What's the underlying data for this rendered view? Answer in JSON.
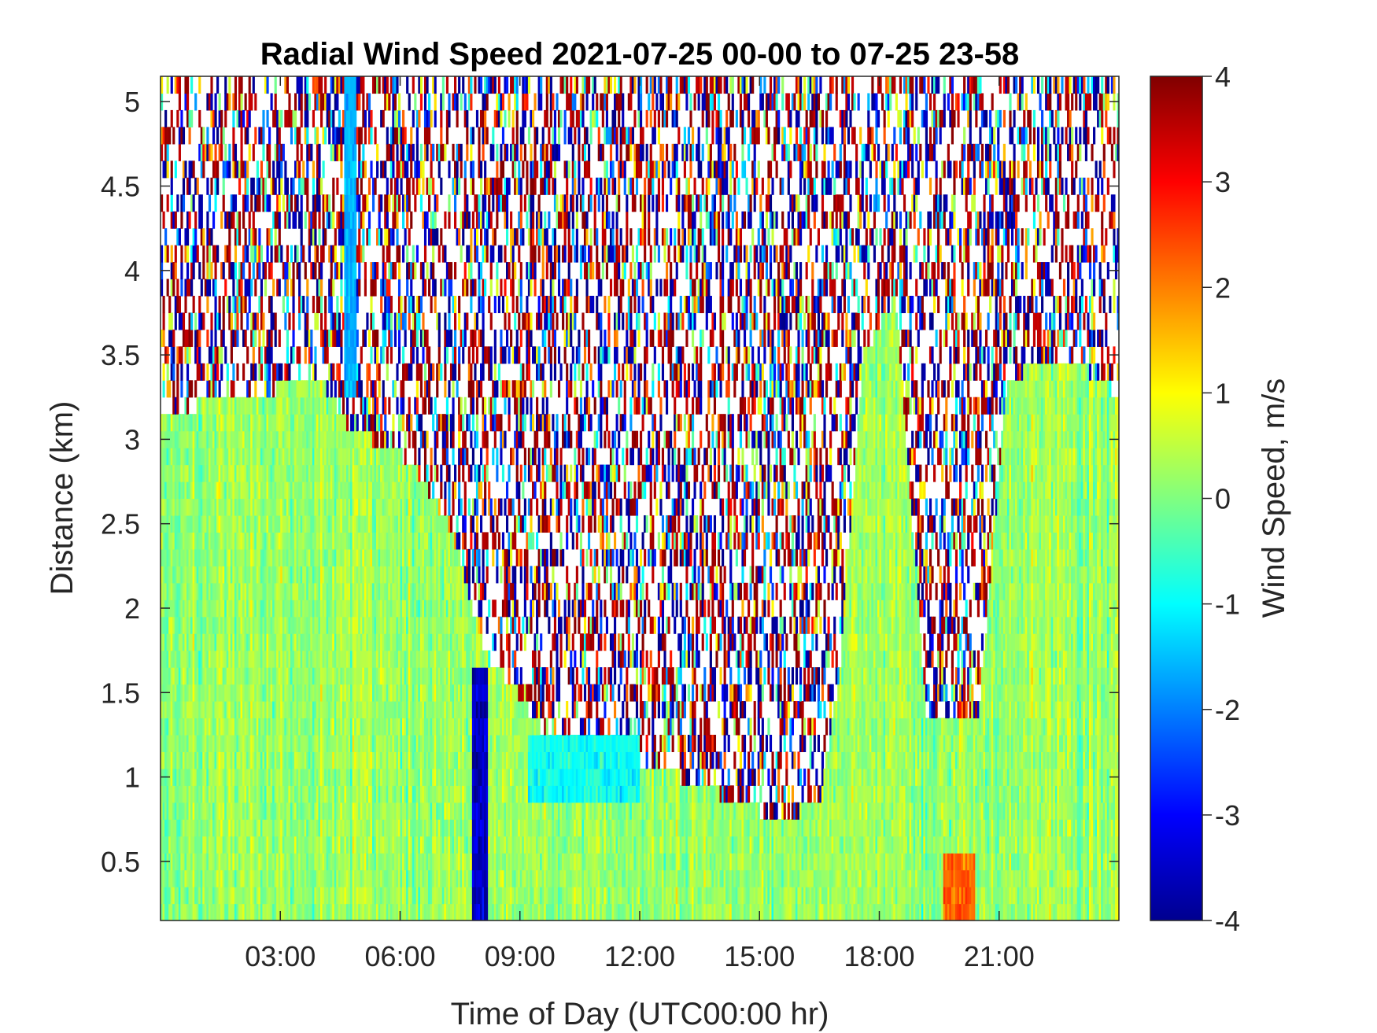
{
  "chart_data": {
    "type": "heatmap",
    "title": "Radial Wind Speed 2021-07-25 00-00 to 07-25 23-58",
    "xlabel": "Time of Day (UTC00:00 hr)",
    "ylabel": "Distance (km)",
    "colorbar_label": "Wind Speed, m/s",
    "colormap": "jet",
    "xlim": [
      0,
      24
    ],
    "ylim": [
      0.15,
      5.15
    ],
    "clim": [
      -4,
      4
    ],
    "x_ticks": [
      {
        "value": 3,
        "label": "03:00"
      },
      {
        "value": 6,
        "label": "06:00"
      },
      {
        "value": 9,
        "label": "09:00"
      },
      {
        "value": 12,
        "label": "12:00"
      },
      {
        "value": 15,
        "label": "15:00"
      },
      {
        "value": 18,
        "label": "18:00"
      },
      {
        "value": 21,
        "label": "21:00"
      }
    ],
    "y_ticks": [
      {
        "value": 0.5,
        "label": "0.5"
      },
      {
        "value": 1,
        "label": "1"
      },
      {
        "value": 1.5,
        "label": "1.5"
      },
      {
        "value": 2,
        "label": "2"
      },
      {
        "value": 2.5,
        "label": "2.5"
      },
      {
        "value": 3,
        "label": "3"
      },
      {
        "value": 3.5,
        "label": "3.5"
      },
      {
        "value": 4,
        "label": "4"
      },
      {
        "value": 4.5,
        "label": "4.5"
      },
      {
        "value": 5,
        "label": "5"
      }
    ],
    "colorbar_ticks": [
      {
        "value": 4,
        "label": "4"
      },
      {
        "value": 3,
        "label": "3"
      },
      {
        "value": 2,
        "label": "2"
      },
      {
        "value": 1,
        "label": "1"
      },
      {
        "value": 0,
        "label": "0"
      },
      {
        "value": -1,
        "label": "-1"
      },
      {
        "value": -2,
        "label": "-2"
      },
      {
        "value": -3,
        "label": "-3"
      },
      {
        "value": -4,
        "label": "-4"
      }
    ],
    "coherent_signal_top_km": [
      {
        "hour": 0.0,
        "top": 3.15
      },
      {
        "hour": 1.8,
        "top": 3.25
      },
      {
        "hour": 4.0,
        "top": 3.35
      },
      {
        "hour": 4.8,
        "top": 3.05
      },
      {
        "hour": 5.8,
        "top": 2.95
      },
      {
        "hour": 6.3,
        "top": 2.85
      },
      {
        "hour": 6.8,
        "top": 2.65
      },
      {
        "hour": 7.2,
        "top": 2.5
      },
      {
        "hour": 7.5,
        "top": 2.3
      },
      {
        "hour": 7.8,
        "top": 2.0
      },
      {
        "hour": 8.2,
        "top": 1.7
      },
      {
        "hour": 8.8,
        "top": 1.55
      },
      {
        "hour": 9.6,
        "top": 1.25
      },
      {
        "hour": 10.5,
        "top": 1.2
      },
      {
        "hour": 11.2,
        "top": 1.15
      },
      {
        "hour": 12.5,
        "top": 1.05
      },
      {
        "hour": 13.5,
        "top": 0.95
      },
      {
        "hour": 14.5,
        "top": 0.85
      },
      {
        "hour": 15.5,
        "top": 0.75
      },
      {
        "hour": 16.5,
        "top": 0.85
      },
      {
        "hour": 17.0,
        "top": 1.6
      },
      {
        "hour": 17.6,
        "top": 3.5
      },
      {
        "hour": 18.4,
        "top": 3.85
      },
      {
        "hour": 19.2,
        "top": 1.3
      },
      {
        "hour": 20.5,
        "top": 1.4
      },
      {
        "hour": 21.2,
        "top": 3.35
      },
      {
        "hour": 22.0,
        "top": 3.45
      },
      {
        "hour": 23.0,
        "top": 3.45
      },
      {
        "hour": 24.0,
        "top": 3.25
      }
    ],
    "signal_region_mean_speed": 0.2,
    "features": [
      {
        "hour_range": [
          7.8,
          8.2
        ],
        "distance_range": [
          0.15,
          1.6
        ],
        "speed": -3.5
      },
      {
        "hour_range": [
          4.6,
          4.9
        ],
        "distance_range": [
          3.3,
          5.15
        ],
        "speed": -1.6
      },
      {
        "hour_range": [
          19.6,
          20.4
        ],
        "distance_range": [
          0.15,
          0.6
        ],
        "speed": 2.2
      },
      {
        "hour_range": [
          9.2,
          12.0
        ],
        "distance_range": [
          0.9,
          1.2
        ],
        "speed": -0.9
      }
    ],
    "noise_region": "scattered -4 to 4 m/s above coherent signal top"
  }
}
